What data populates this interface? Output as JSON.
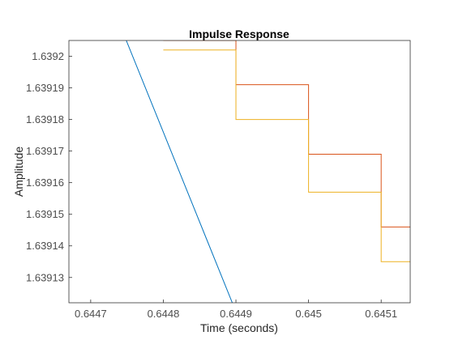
{
  "chart_data": {
    "type": "line",
    "title": "Impulse Response",
    "xlabel": "Time (seconds)",
    "ylabel": "Amplitude",
    "xlim": [
      0.64467,
      0.64514
    ],
    "ylim": [
      1.639122,
      1.639205
    ],
    "x_ticks": [
      {
        "value": 0.6447,
        "label": "0.6447"
      },
      {
        "value": 0.6448,
        "label": "0.6448"
      },
      {
        "value": 0.6449,
        "label": "0.6449"
      },
      {
        "value": 0.645,
        "label": "0.645"
      },
      {
        "value": 0.6451,
        "label": "0.6451"
      }
    ],
    "y_ticks": [
      {
        "value": 1.63913,
        "label": "1.63913"
      },
      {
        "value": 1.63914,
        "label": "1.63914"
      },
      {
        "value": 1.63915,
        "label": "1.63915"
      },
      {
        "value": 1.63916,
        "label": "1.63916"
      },
      {
        "value": 1.63917,
        "label": "1.63917"
      },
      {
        "value": 1.63918,
        "label": "1.63918"
      },
      {
        "value": 1.63919,
        "label": "1.63919"
      },
      {
        "value": 1.6392,
        "label": "1.6392"
      }
    ],
    "grid": false,
    "series": [
      {
        "color": "#0072BD",
        "style": "line",
        "x": [
          0.644749,
          0.644895
        ],
        "y": [
          1.639205,
          1.639122
        ]
      },
      {
        "color": "#D95319",
        "style": "stairs",
        "x": [
          0.6448,
          0.6449,
          0.645,
          0.6451,
          0.64514
        ],
        "y": [
          1.639205,
          1.639191,
          1.639169,
          1.639146,
          1.639146
        ]
      },
      {
        "color": "#EDB120",
        "style": "stairs",
        "x": [
          0.6448,
          0.6449,
          0.645,
          0.6451,
          0.64514
        ],
        "y": [
          1.639202,
          1.63918,
          1.639157,
          1.639135,
          1.639135
        ]
      }
    ]
  }
}
